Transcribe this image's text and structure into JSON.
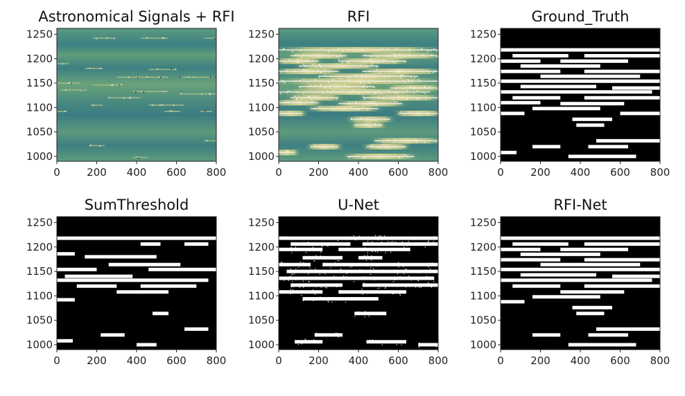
{
  "chart_data": [
    {
      "type": "heatmap",
      "title": "Astronomical Signals + RFI",
      "xlim": [
        0,
        800
      ],
      "ylim": [
        990,
        1262
      ],
      "xticks": [
        0,
        200,
        400,
        600,
        800
      ],
      "yticks": [
        1000,
        1050,
        1100,
        1150,
        1200,
        1250
      ],
      "colormap": "teal-green-yellow",
      "bands": [
        {
          "y": 1242,
          "x": [
            180,
            290
          ]
        },
        {
          "y": 1242,
          "x": [
            420,
            560
          ]
        },
        {
          "y": 1242,
          "x": [
            740,
            800
          ]
        },
        {
          "y": 1190,
          "x": [
            0,
            60
          ]
        },
        {
          "y": 1180,
          "x": [
            140,
            230
          ]
        },
        {
          "y": 1178,
          "x": [
            460,
            600
          ]
        },
        {
          "y": 1162,
          "x": [
            300,
            560
          ]
        },
        {
          "y": 1162,
          "x": [
            620,
            780
          ]
        },
        {
          "y": 1150,
          "x": [
            0,
            120
          ]
        },
        {
          "y": 1146,
          "x": [
            180,
            330
          ]
        },
        {
          "y": 1136,
          "x": [
            20,
            150
          ]
        },
        {
          "y": 1133,
          "x": [
            380,
            560
          ]
        },
        {
          "y": 1128,
          "x": [
            620,
            800
          ]
        },
        {
          "y": 1120,
          "x": [
            260,
            420
          ]
        },
        {
          "y": 1105,
          "x": [
            170,
            230
          ]
        },
        {
          "y": 1105,
          "x": [
            460,
            640
          ]
        },
        {
          "y": 1092,
          "x": [
            0,
            50
          ]
        },
        {
          "y": 1092,
          "x": [
            540,
            620
          ]
        },
        {
          "y": 1092,
          "x": [
            720,
            780
          ]
        },
        {
          "y": 1022,
          "x": [
            160,
            240
          ]
        },
        {
          "y": 1032,
          "x": [
            740,
            800
          ]
        },
        {
          "y": 998,
          "x": [
            380,
            460
          ]
        }
      ]
    },
    {
      "type": "heatmap",
      "title": "RFI",
      "xlim": [
        0,
        800
      ],
      "ylim": [
        990,
        1262
      ],
      "xticks": [
        0,
        200,
        400,
        600,
        800
      ],
      "yticks": [
        1000,
        1050,
        1100,
        1150,
        1200,
        1250
      ],
      "colormap": "teal-green-yellow",
      "bands": [
        {
          "y": 1218,
          "x": [
            0,
            800
          ]
        },
        {
          "y": 1206,
          "x": [
            60,
            340
          ]
        },
        {
          "y": 1206,
          "x": [
            420,
            800
          ]
        },
        {
          "y": 1195,
          "x": [
            0,
            200
          ]
        },
        {
          "y": 1195,
          "x": [
            300,
            640
          ]
        },
        {
          "y": 1185,
          "x": [
            100,
            500
          ]
        },
        {
          "y": 1174,
          "x": [
            0,
            300
          ]
        },
        {
          "y": 1174,
          "x": [
            420,
            800
          ]
        },
        {
          "y": 1164,
          "x": [
            200,
            700
          ]
        },
        {
          "y": 1154,
          "x": [
            0,
            800
          ]
        },
        {
          "y": 1143,
          "x": [
            100,
            480
          ]
        },
        {
          "y": 1140,
          "x": [
            560,
            800
          ]
        },
        {
          "y": 1132,
          "x": [
            0,
            760
          ]
        },
        {
          "y": 1120,
          "x": [
            60,
            300
          ]
        },
        {
          "y": 1120,
          "x": [
            420,
            800
          ]
        },
        {
          "y": 1110,
          "x": [
            0,
            200
          ]
        },
        {
          "y": 1108,
          "x": [
            300,
            620
          ]
        },
        {
          "y": 1098,
          "x": [
            160,
            500
          ]
        },
        {
          "y": 1088,
          "x": [
            0,
            120
          ]
        },
        {
          "y": 1088,
          "x": [
            600,
            800
          ]
        },
        {
          "y": 1076,
          "x": [
            360,
            560
          ]
        },
        {
          "y": 1064,
          "x": [
            380,
            520
          ]
        },
        {
          "y": 1032,
          "x": [
            480,
            800
          ]
        },
        {
          "y": 1020,
          "x": [
            160,
            300
          ]
        },
        {
          "y": 1020,
          "x": [
            440,
            640
          ]
        },
        {
          "y": 1008,
          "x": [
            0,
            80
          ]
        },
        {
          "y": 1000,
          "x": [
            340,
            680
          ]
        }
      ]
    },
    {
      "type": "heatmap",
      "title": "Ground_Truth",
      "xlim": [
        0,
        800
      ],
      "ylim": [
        990,
        1262
      ],
      "xticks": [
        0,
        200,
        400,
        600,
        800
      ],
      "yticks": [
        1000,
        1050,
        1100,
        1150,
        1200,
        1250
      ],
      "colormap": "binary",
      "bands": [
        {
          "y": 1218,
          "x": [
            0,
            800
          ]
        },
        {
          "y": 1206,
          "x": [
            60,
            340
          ]
        },
        {
          "y": 1206,
          "x": [
            420,
            800
          ]
        },
        {
          "y": 1195,
          "x": [
            0,
            200
          ]
        },
        {
          "y": 1195,
          "x": [
            300,
            640
          ]
        },
        {
          "y": 1185,
          "x": [
            100,
            500
          ]
        },
        {
          "y": 1174,
          "x": [
            0,
            300
          ]
        },
        {
          "y": 1174,
          "x": [
            420,
            800
          ]
        },
        {
          "y": 1164,
          "x": [
            200,
            700
          ]
        },
        {
          "y": 1154,
          "x": [
            0,
            800
          ]
        },
        {
          "y": 1143,
          "x": [
            100,
            480
          ]
        },
        {
          "y": 1140,
          "x": [
            560,
            800
          ]
        },
        {
          "y": 1132,
          "x": [
            0,
            760
          ]
        },
        {
          "y": 1120,
          "x": [
            60,
            300
          ]
        },
        {
          "y": 1120,
          "x": [
            420,
            800
          ]
        },
        {
          "y": 1110,
          "x": [
            0,
            200
          ]
        },
        {
          "y": 1108,
          "x": [
            300,
            620
          ]
        },
        {
          "y": 1098,
          "x": [
            160,
            500
          ]
        },
        {
          "y": 1088,
          "x": [
            0,
            120
          ]
        },
        {
          "y": 1088,
          "x": [
            600,
            800
          ]
        },
        {
          "y": 1076,
          "x": [
            360,
            560
          ]
        },
        {
          "y": 1064,
          "x": [
            380,
            520
          ]
        },
        {
          "y": 1032,
          "x": [
            480,
            800
          ]
        },
        {
          "y": 1020,
          "x": [
            160,
            300
          ]
        },
        {
          "y": 1020,
          "x": [
            440,
            640
          ]
        },
        {
          "y": 1008,
          "x": [
            0,
            80
          ]
        },
        {
          "y": 1000,
          "x": [
            340,
            680
          ]
        }
      ]
    },
    {
      "type": "heatmap",
      "title": "SumThreshold",
      "xlim": [
        0,
        800
      ],
      "ylim": [
        990,
        1262
      ],
      "xticks": [
        0,
        200,
        400,
        600,
        800
      ],
      "yticks": [
        1000,
        1050,
        1100,
        1150,
        1200,
        1250
      ],
      "colormap": "binary",
      "bands": [
        {
          "y": 1218,
          "x": [
            0,
            800
          ]
        },
        {
          "y": 1206,
          "x": [
            420,
            520
          ]
        },
        {
          "y": 1206,
          "x": [
            640,
            760
          ]
        },
        {
          "y": 1186,
          "x": [
            0,
            90
          ]
        },
        {
          "y": 1180,
          "x": [
            140,
            500
          ]
        },
        {
          "y": 1164,
          "x": [
            260,
            620
          ]
        },
        {
          "y": 1154,
          "x": [
            0,
            200
          ]
        },
        {
          "y": 1154,
          "x": [
            460,
            800
          ]
        },
        {
          "y": 1140,
          "x": [
            40,
            380
          ]
        },
        {
          "y": 1132,
          "x": [
            0,
            760
          ]
        },
        {
          "y": 1120,
          "x": [
            100,
            300
          ]
        },
        {
          "y": 1120,
          "x": [
            420,
            700
          ]
        },
        {
          "y": 1108,
          "x": [
            300,
            560
          ]
        },
        {
          "y": 1092,
          "x": [
            0,
            90
          ]
        },
        {
          "y": 1064,
          "x": [
            480,
            560
          ]
        },
        {
          "y": 1032,
          "x": [
            640,
            760
          ]
        },
        {
          "y": 1020,
          "x": [
            220,
            340
          ]
        },
        {
          "y": 1008,
          "x": [
            0,
            80
          ]
        },
        {
          "y": 1000,
          "x": [
            400,
            500
          ]
        }
      ]
    },
    {
      "type": "heatmap",
      "title": "U-Net",
      "xlim": [
        0,
        800
      ],
      "ylim": [
        990,
        1262
      ],
      "xticks": [
        0,
        200,
        400,
        600,
        800
      ],
      "yticks": [
        1000,
        1050,
        1100,
        1150,
        1200,
        1250
      ],
      "colormap": "binary",
      "bands": [
        {
          "y": 1218,
          "x": [
            0,
            800
          ]
        },
        {
          "y": 1206,
          "x": [
            60,
            360
          ]
        },
        {
          "y": 1206,
          "x": [
            420,
            800
          ]
        },
        {
          "y": 1195,
          "x": [
            0,
            220
          ]
        },
        {
          "y": 1195,
          "x": [
            300,
            660
          ]
        },
        {
          "y": 1178,
          "x": [
            120,
            320
          ]
        },
        {
          "y": 1178,
          "x": [
            400,
            520
          ]
        },
        {
          "y": 1164,
          "x": [
            0,
            160
          ]
        },
        {
          "y": 1164,
          "x": [
            220,
            800
          ]
        },
        {
          "y": 1150,
          "x": [
            40,
            800
          ]
        },
        {
          "y": 1136,
          "x": [
            0,
            780
          ]
        },
        {
          "y": 1122,
          "x": [
            60,
            320
          ]
        },
        {
          "y": 1122,
          "x": [
            420,
            800
          ]
        },
        {
          "y": 1108,
          "x": [
            0,
            220
          ]
        },
        {
          "y": 1108,
          "x": [
            300,
            640
          ]
        },
        {
          "y": 1094,
          "x": [
            120,
            500
          ]
        },
        {
          "y": 1064,
          "x": [
            380,
            540
          ]
        },
        {
          "y": 1020,
          "x": [
            180,
            320
          ]
        },
        {
          "y": 1006,
          "x": [
            80,
            220
          ]
        },
        {
          "y": 1006,
          "x": [
            440,
            640
          ]
        },
        {
          "y": 1000,
          "x": [
            700,
            800
          ]
        }
      ]
    },
    {
      "type": "heatmap",
      "title": "RFI-Net",
      "xlim": [
        0,
        800
      ],
      "ylim": [
        990,
        1262
      ],
      "xticks": [
        0,
        200,
        400,
        600,
        800
      ],
      "yticks": [
        1000,
        1050,
        1100,
        1150,
        1200,
        1250
      ],
      "colormap": "binary",
      "bands": [
        {
          "y": 1218,
          "x": [
            0,
            800
          ]
        },
        {
          "y": 1206,
          "x": [
            60,
            340
          ]
        },
        {
          "y": 1206,
          "x": [
            420,
            800
          ]
        },
        {
          "y": 1195,
          "x": [
            0,
            200
          ]
        },
        {
          "y": 1195,
          "x": [
            300,
            640
          ]
        },
        {
          "y": 1185,
          "x": [
            100,
            500
          ]
        },
        {
          "y": 1174,
          "x": [
            0,
            300
          ]
        },
        {
          "y": 1174,
          "x": [
            420,
            800
          ]
        },
        {
          "y": 1164,
          "x": [
            200,
            700
          ]
        },
        {
          "y": 1154,
          "x": [
            0,
            800
          ]
        },
        {
          "y": 1143,
          "x": [
            100,
            480
          ]
        },
        {
          "y": 1140,
          "x": [
            560,
            800
          ]
        },
        {
          "y": 1132,
          "x": [
            0,
            760
          ]
        },
        {
          "y": 1120,
          "x": [
            60,
            300
          ]
        },
        {
          "y": 1120,
          "x": [
            420,
            800
          ]
        },
        {
          "y": 1108,
          "x": [
            300,
            620
          ]
        },
        {
          "y": 1098,
          "x": [
            160,
            500
          ]
        },
        {
          "y": 1088,
          "x": [
            0,
            120
          ]
        },
        {
          "y": 1076,
          "x": [
            360,
            560
          ]
        },
        {
          "y": 1064,
          "x": [
            380,
            520
          ]
        },
        {
          "y": 1032,
          "x": [
            480,
            800
          ]
        },
        {
          "y": 1020,
          "x": [
            160,
            300
          ]
        },
        {
          "y": 1020,
          "x": [
            440,
            640
          ]
        },
        {
          "y": 1000,
          "x": [
            340,
            680
          ]
        }
      ]
    }
  ],
  "colors": {
    "background_teal": "#3f7f82",
    "mid_green": "#6ea27a",
    "signal_yellow": "#d8d59a",
    "signal_white": "#f4f0e6",
    "mask_black": "#000000",
    "mask_white": "#ffffff"
  }
}
